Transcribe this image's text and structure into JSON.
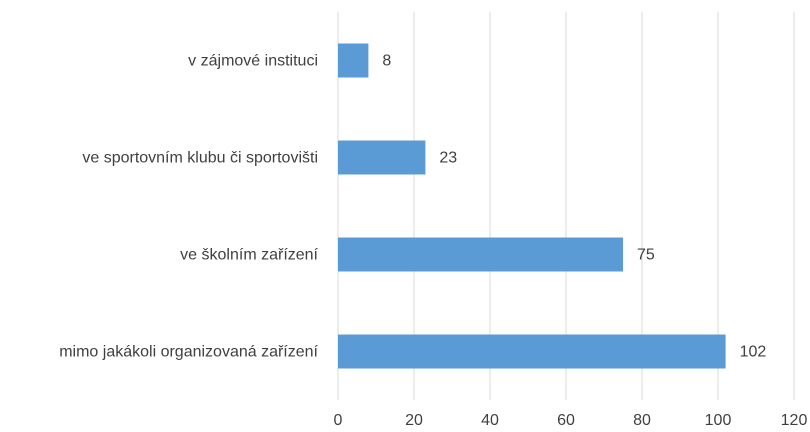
{
  "chart_data": {
    "type": "barh",
    "categories": [
      "v zájmové instituci",
      "ve sportovním klubu či sportovišti",
      "ve školním zařízení",
      "mimo jakákoli organizovaná zařízení"
    ],
    "values": [
      8,
      23,
      75,
      102
    ],
    "color": "#5b9bd5",
    "xlim": [
      0,
      120
    ],
    "xticks": [
      0,
      20,
      40,
      60,
      80,
      100,
      120
    ],
    "grid": true
  }
}
